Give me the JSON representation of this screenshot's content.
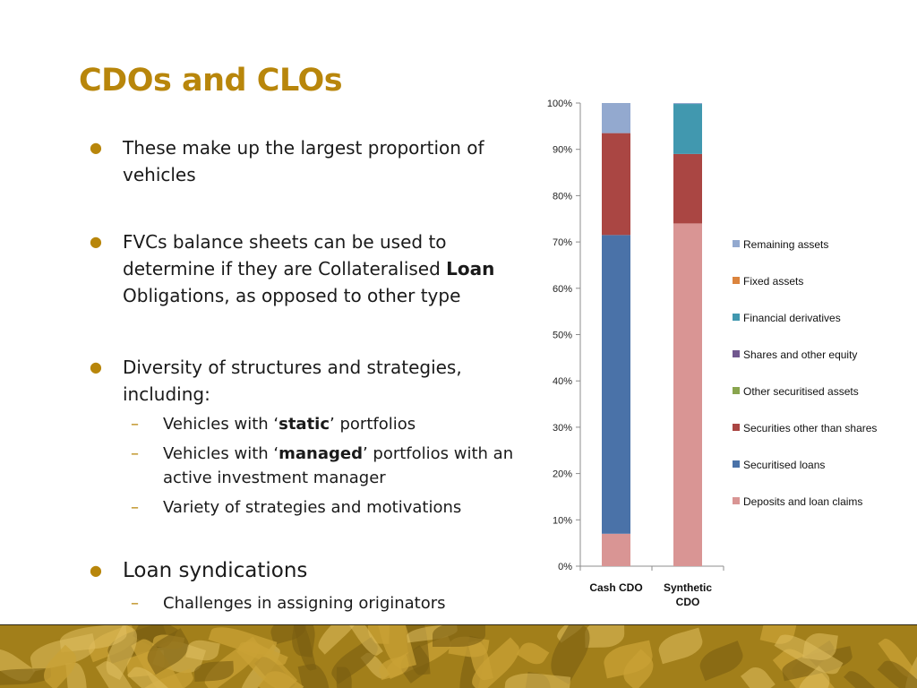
{
  "slide": {
    "title": "CDOs and CLOs",
    "bullets": {
      "b1": "These make up the largest proportion of vehicles",
      "b2_pre": "FVCs balance sheets can be used to determine if they are Collateralised ",
      "b2_bold": "Loan",
      "b2_post": " Obligations, as opposed to other type",
      "b3": "Diversity of structures and strategies, including:",
      "s1_pre": "Vehicles with ‘",
      "s1_bold": "static",
      "s1_post": "’ portfolios",
      "s2_pre": "Vehicles with ‘",
      "s2_bold": "managed",
      "s2_post": "’ portfolios with an active investment manager",
      "s3": "Variety of strategies and motivations",
      "b4": "Loan syndications",
      "s4": "Challenges in assigning originators"
    }
  },
  "colors": {
    "title": "#b8860b",
    "bullet": "#b8860b",
    "footer": "#a27f1a"
  },
  "chart_data": {
    "type": "bar",
    "stacked": true,
    "categories": [
      "Cash CDO",
      "Synthetic CDO"
    ],
    "category_display": [
      [
        "Cash CDO"
      ],
      [
        "Synthetic",
        "CDO"
      ]
    ],
    "ylim": [
      0,
      100
    ],
    "yticks": [
      "0%",
      "10%",
      "20%",
      "30%",
      "40%",
      "50%",
      "60%",
      "70%",
      "80%",
      "90%",
      "100%"
    ],
    "legend_position": "right",
    "series": [
      {
        "name": "Deposits and loan claims",
        "color": "#d99594",
        "values": [
          7,
          74
        ]
      },
      {
        "name": "Securitised loans",
        "color": "#4a72a8",
        "values": [
          64.5,
          0
        ]
      },
      {
        "name": "Securities other than shares",
        "color": "#aa4643",
        "values": [
          22,
          15
        ]
      },
      {
        "name": "Other securitised assets",
        "color": "#89a54e",
        "values": [
          0,
          0
        ]
      },
      {
        "name": "Shares and other equity",
        "color": "#71588f",
        "values": [
          0,
          0
        ]
      },
      {
        "name": "Financial derivatives",
        "color": "#4198af",
        "values": [
          0,
          10.8
        ]
      },
      {
        "name": "Fixed assets",
        "color": "#db843d",
        "values": [
          0,
          0
        ]
      },
      {
        "name": "Remaining assets",
        "color": "#93a9cf",
        "values": [
          6.5,
          0.2
        ]
      }
    ]
  }
}
